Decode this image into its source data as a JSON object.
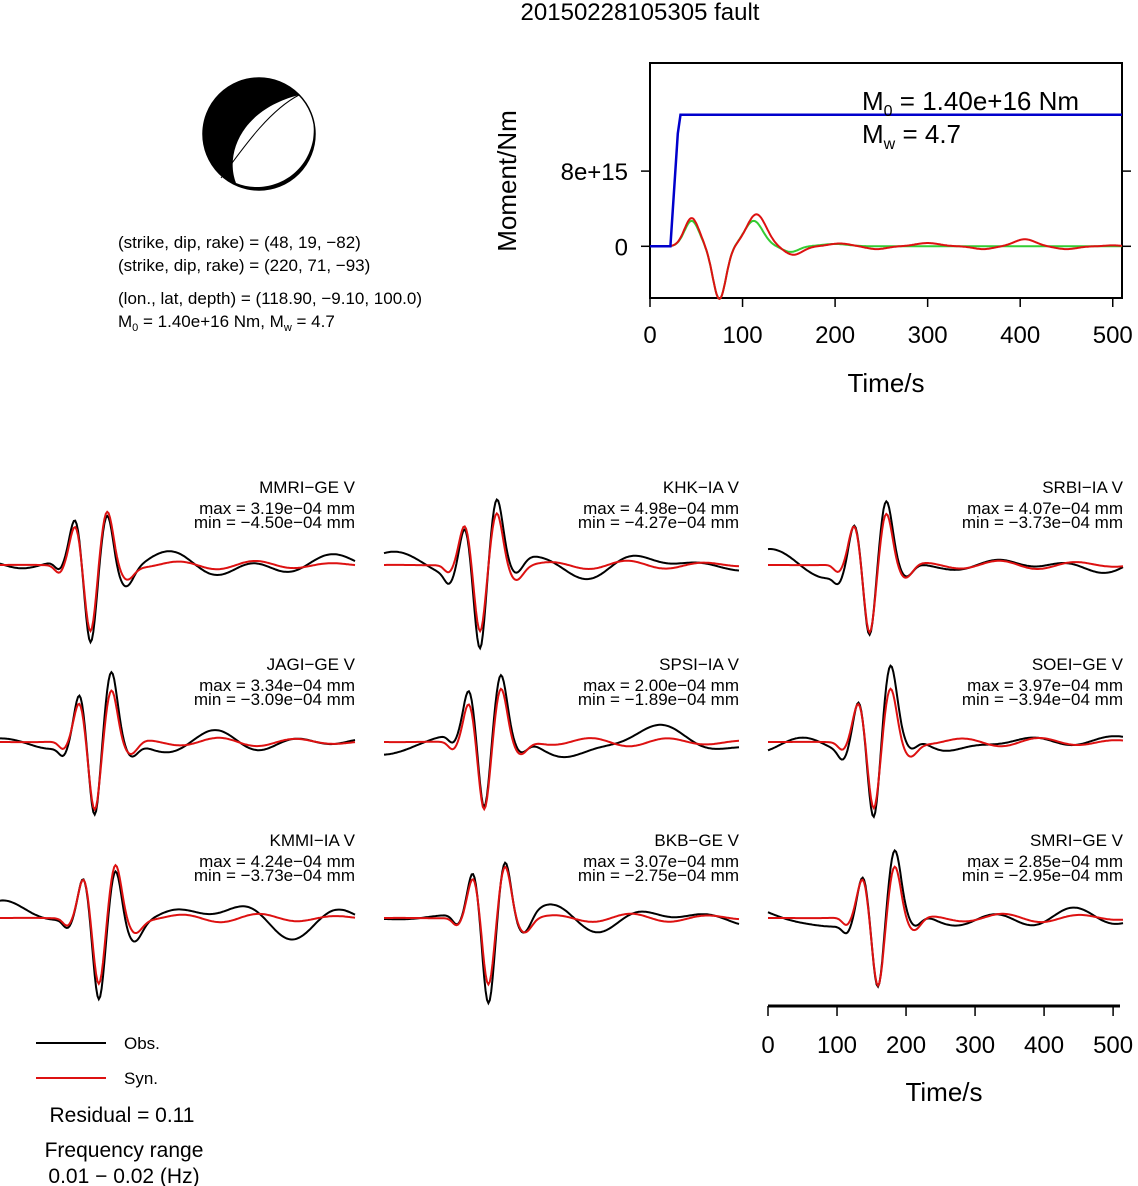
{
  "page": {
    "title": "20150228105305 fault"
  },
  "beachball": {
    "plane1": "(strike, dip, rake) = (48, 19, −82)",
    "plane2": "(strike, dip, rake) = (220, 71, −93)",
    "location": "(lon., lat, depth) = (118.90, −9.10, 100.0)",
    "moment_m0": "M",
    "moment_m0_sub": "0",
    "moment_m0_value": " = 1.40e+16 Nm, M",
    "moment_mw_sub": "w",
    "moment_mw_value": " = 4.7"
  },
  "moment_plot": {
    "ylabel": "Moment/Nm",
    "xlabel": "Time/s",
    "m0_label": "M",
    "m0_sub": "0",
    "m0_value": " = 1.40e+16 Nm",
    "mw_label": "M",
    "mw_sub": "w",
    "mw_value": " = 4.7",
    "colors": {
      "moment": "#0000cc",
      "rate_green": "#33cc33",
      "rate_red": "#dd1111"
    }
  },
  "waveform_axis": {
    "xlabel": "Time/s"
  },
  "legend": {
    "obs_label": "Obs.",
    "syn_label": "Syn.",
    "obs_color": "#000000",
    "syn_color": "#dd1111",
    "residual": "Residual = 0.11",
    "freq_title": "Frequency range",
    "freq_value": "0.01 − 0.02 (Hz)"
  },
  "chart_data": [
    {
      "type": "line",
      "title": "20150228105305 fault",
      "xlabel": "Time/s",
      "ylabel": "Moment/Nm",
      "xlim": [
        0,
        510
      ],
      "ylim": [
        -5500000000000000.0,
        1.95e+16
      ],
      "xticks": [
        0,
        100,
        200,
        300,
        400,
        500
      ],
      "yticks": [
        {
          "value": 0,
          "label": "0"
        },
        {
          "value": 8000000000000000.0,
          "label": "8e+15"
        }
      ],
      "annotations": [
        "M0 = 1.40e+16 Nm",
        "Mw = 4.7"
      ],
      "series": [
        {
          "color": "#0000cc",
          "x": [
            0,
            22,
            30,
            33,
            510
          ],
          "y": [
            0,
            0,
            1.2e+16,
            1.4e+16,
            1.4e+16
          ]
        }
      ]
    },
    {
      "type": "line",
      "xlabel": "Time/s",
      "xlim": [
        0,
        510
      ],
      "xticks": [
        0,
        100,
        200,
        300,
        400,
        500
      ],
      "stations": [
        {
          "name": "MMRI−GE V",
          "max": "max = 3.19e−04 mm",
          "min": "min = −4.50e−04 mm"
        },
        {
          "name": "KHK−IA V",
          "max": "max = 4.98e−04 mm",
          "min": "min = −4.27e−04 mm"
        },
        {
          "name": "SRBI−IA V",
          "max": "max = 4.07e−04 mm",
          "min": "min = −3.73e−04 mm"
        },
        {
          "name": "JAGI−GE V",
          "max": "max = 3.34e−04 mm",
          "min": "min = −3.09e−04 mm"
        },
        {
          "name": "SPSI−IA V",
          "max": "max = 2.00e−04 mm",
          "min": "min = −1.89e−04 mm"
        },
        {
          "name": "SOEI−GE V",
          "max": "max = 3.97e−04 mm",
          "min": "min = −3.94e−04 mm"
        },
        {
          "name": "KMMI−IA V",
          "max": "max = 4.24e−04 mm",
          "min": "min = −3.73e−04 mm"
        },
        {
          "name": "BKB−GE V",
          "max": "max = 3.07e−04 mm",
          "min": "min = −2.75e−04 mm"
        },
        {
          "name": "SMRI−GE V",
          "max": "max = 2.85e−04 mm",
          "min": "min = −2.95e−04 mm"
        }
      ]
    }
  ]
}
